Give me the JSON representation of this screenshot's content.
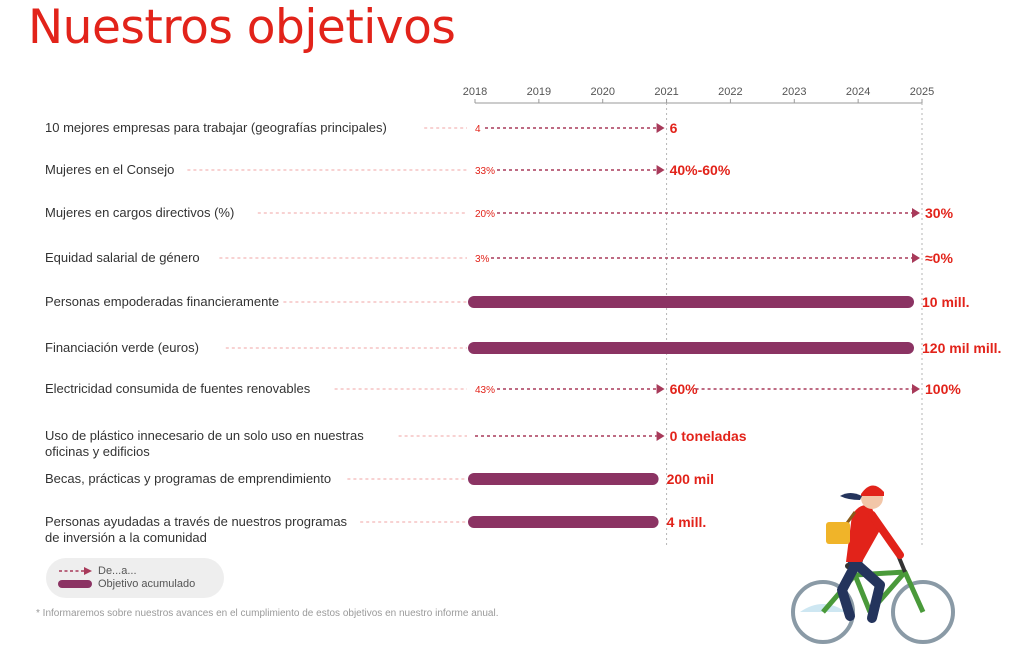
{
  "title": "Nuestros objetivos",
  "colors": {
    "red": "#e2231a",
    "bar": "#8b3363",
    "arrow": "#a83a5a",
    "guide": "#f0a5a5",
    "text": "#333333"
  },
  "chart_data": {
    "type": "timeline-bar",
    "x_ticks": [
      "2018",
      "2019",
      "2020",
      "2021",
      "2022",
      "2023",
      "2024",
      "2025"
    ],
    "xlim": [
      2018,
      2025
    ],
    "rows": [
      {
        "label": [
          "10 mejores empresas para trabajar (geografías principales)"
        ],
        "kind": "arrow",
        "from_year": 2018,
        "start_label": "4",
        "segments": [
          {
            "to_year": 2021,
            "label": "6"
          }
        ]
      },
      {
        "label": [
          "Mujeres en el Consejo"
        ],
        "kind": "arrow",
        "from_year": 2018,
        "start_label": "33%",
        "segments": [
          {
            "to_year": 2021,
            "label": "40%-60%"
          }
        ]
      },
      {
        "label": [
          "Mujeres en cargos directivos (%)"
        ],
        "kind": "arrow",
        "from_year": 2018,
        "start_label": "20%",
        "segments": [
          {
            "to_year": 2025,
            "label": "30%"
          }
        ]
      },
      {
        "label": [
          "Equidad salarial de género"
        ],
        "kind": "arrow",
        "from_year": 2018,
        "start_label": "3%",
        "segments": [
          {
            "to_year": 2025,
            "label": "≈0%"
          }
        ]
      },
      {
        "label": [
          "Personas empoderadas financieramente"
        ],
        "kind": "bar",
        "from_year": 2018,
        "segments": [
          {
            "to_year": 2025,
            "label": "10 mill."
          }
        ]
      },
      {
        "label": [
          "Financiación verde  (euros)"
        ],
        "kind": "bar",
        "from_year": 2018,
        "segments": [
          {
            "to_year": 2025,
            "label": "120 mil mill."
          }
        ]
      },
      {
        "label": [
          "Electricidad consumida de fuentes renovables"
        ],
        "kind": "arrow",
        "from_year": 2018,
        "start_label": "43%",
        "segments": [
          {
            "to_year": 2021,
            "label": "60%"
          },
          {
            "to_year": 2025,
            "label": "100%"
          }
        ]
      },
      {
        "label": [
          "Uso de plástico innecesario de un solo uso en nuestras",
          "oficinas y edificios"
        ],
        "kind": "arrow",
        "from_year": 2018,
        "start_label": "",
        "segments": [
          {
            "to_year": 2021,
            "label": "0 toneladas"
          }
        ]
      },
      {
        "label": [
          "Becas, prácticas y programas de emprendimiento"
        ],
        "kind": "bar",
        "from_year": 2018,
        "segments": [
          {
            "to_year": 2021,
            "label": "200 mil"
          }
        ]
      },
      {
        "label": [
          "Personas ayudadas a través de nuestros programas",
          "de inversión a la comunidad"
        ],
        "kind": "bar",
        "from_year": 2018,
        "segments": [
          {
            "to_year": 2021,
            "label": "4 mill."
          }
        ]
      }
    ]
  },
  "legend": {
    "arrow_label": "De...a...",
    "bar_label": "Objetivo acumulado"
  },
  "footnote": "* Informaremos sobre nuestros avances en el cumplimiento de estos objetivos en nuestro informe anual.",
  "illustration": {
    "icon": "cyclist-icon"
  }
}
